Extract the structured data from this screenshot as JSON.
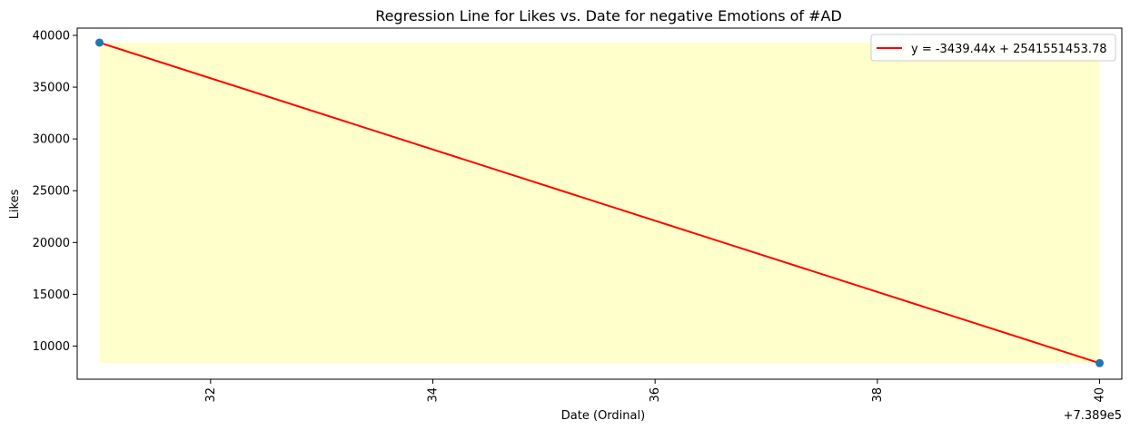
{
  "chart_data": {
    "type": "scatter",
    "title": "Regression Line for Likes vs. Date for negative Emotions of #AD",
    "xlabel": "Date (Ordinal)",
    "ylabel": "Likes",
    "x_offset_label": "+7.389e5",
    "xlim": [
      738930.8,
      738940.2
    ],
    "ylim": [
      6800,
      40700
    ],
    "x_ticks": [
      738932,
      738934,
      738936,
      738938,
      738940
    ],
    "x_tick_labels": [
      "32",
      "34",
      "36",
      "38",
      "40"
    ],
    "y_ticks": [
      10000,
      15000,
      20000,
      25000,
      30000,
      35000,
      40000
    ],
    "y_tick_labels": [
      "10000",
      "15000",
      "20000",
      "25000",
      "30000",
      "35000",
      "40000"
    ],
    "grid": false,
    "legend_position": "top-right",
    "points": [
      {
        "x": 738931,
        "y": 39300
      },
      {
        "x": 738940,
        "y": 8350
      }
    ],
    "regression": {
      "label": "y = -3439.44x + 2541551453.78",
      "slope": -3439.44,
      "intercept": 2541551453.78,
      "color": "#ff0000"
    },
    "band": {
      "x": [
        738931,
        738940
      ],
      "y_low": 8350,
      "y_high": 39300,
      "color": "#ffffcc"
    },
    "point_color": "#1f77b4"
  }
}
